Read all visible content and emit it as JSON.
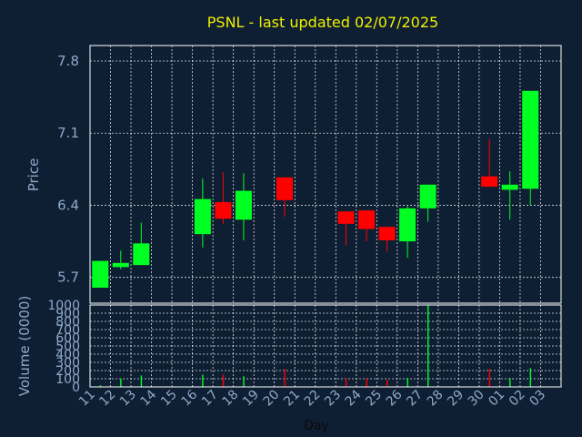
{
  "title": "PSNL - last updated 02/07/2025",
  "colors": {
    "background": "#0f1f33",
    "up": "#00ff22",
    "down": "#ff0000",
    "title": "#f0f000",
    "text": "#8ea8c8",
    "grid": "#ffffff"
  },
  "chart_data": [
    {
      "type": "candlestick",
      "title": "PSNL - last updated 02/07/2025",
      "ylabel": "Price",
      "ylim": [
        5.45,
        7.95
      ],
      "yticks": [
        5.7,
        6.4,
        7.1,
        7.8
      ],
      "ytick_labels": [
        "5.7",
        "6.4",
        "7.1",
        "7.8"
      ],
      "grid": true,
      "candles": [
        {
          "day": "11",
          "open": 5.6,
          "high": 5.86,
          "low": 5.6,
          "close": 5.86
        },
        {
          "day": "12",
          "open": 5.8,
          "high": 5.96,
          "low": 5.78,
          "close": 5.84
        },
        {
          "day": "13",
          "open": 5.82,
          "high": 6.23,
          "low": 5.82,
          "close": 6.03
        },
        {
          "day": "16",
          "open": 6.12,
          "high": 6.66,
          "low": 5.99,
          "close": 6.46
        },
        {
          "day": "17",
          "open": 6.43,
          "high": 6.72,
          "low": 6.22,
          "close": 6.27
        },
        {
          "day": "18",
          "open": 6.26,
          "high": 6.71,
          "low": 6.06,
          "close": 6.54
        },
        {
          "day": "20",
          "open": 6.67,
          "high": 6.67,
          "low": 6.29,
          "close": 6.45
        },
        {
          "day": "23",
          "open": 6.34,
          "high": 6.34,
          "low": 6.01,
          "close": 6.22
        },
        {
          "day": "24",
          "open": 6.35,
          "high": 6.35,
          "low": 6.05,
          "close": 6.17
        },
        {
          "day": "25",
          "open": 6.19,
          "high": 6.19,
          "low": 5.95,
          "close": 6.06
        },
        {
          "day": "26",
          "open": 6.05,
          "high": 6.39,
          "low": 5.89,
          "close": 6.37
        },
        {
          "day": "27",
          "open": 6.37,
          "high": 6.6,
          "low": 6.24,
          "close": 6.6
        },
        {
          "day": "30",
          "open": 6.68,
          "high": 7.04,
          "low": 6.58,
          "close": 6.58
        },
        {
          "day": "01",
          "open": 6.55,
          "high": 6.73,
          "low": 6.26,
          "close": 6.6
        },
        {
          "day": "02",
          "open": 6.56,
          "high": 7.51,
          "low": 6.4,
          "close": 7.51
        }
      ]
    },
    {
      "type": "bar",
      "ylabel": "Volume (0000)",
      "xlabel": "Day",
      "ylim": [
        0,
        1000
      ],
      "yticks": [
        0,
        100,
        200,
        300,
        400,
        500,
        600,
        700,
        800,
        900,
        1000
      ],
      "categories": [
        "11",
        "12",
        "13",
        "14",
        "15",
        "16",
        "17",
        "18",
        "19",
        "20",
        "21",
        "22",
        "23",
        "24",
        "25",
        "26",
        "27",
        "28",
        "29",
        "30",
        "01",
        "02",
        "03"
      ],
      "volumes": [
        {
          "day": "11",
          "value": 20,
          "dir": "up"
        },
        {
          "day": "12",
          "value": 100,
          "dir": "up"
        },
        {
          "day": "13",
          "value": 140,
          "dir": "up"
        },
        {
          "day": "16",
          "value": 150,
          "dir": "up"
        },
        {
          "day": "17",
          "value": 150,
          "dir": "down"
        },
        {
          "day": "18",
          "value": 130,
          "dir": "up"
        },
        {
          "day": "20",
          "value": 220,
          "dir": "down"
        },
        {
          "day": "23",
          "value": 110,
          "dir": "down"
        },
        {
          "day": "24",
          "value": 110,
          "dir": "down"
        },
        {
          "day": "25",
          "value": 90,
          "dir": "down"
        },
        {
          "day": "26",
          "value": 110,
          "dir": "up"
        },
        {
          "day": "27",
          "value": 1000,
          "dir": "up"
        },
        {
          "day": "30",
          "value": 220,
          "dir": "down"
        },
        {
          "day": "01",
          "value": 110,
          "dir": "up"
        },
        {
          "day": "02",
          "value": 230,
          "dir": "up"
        }
      ]
    }
  ]
}
